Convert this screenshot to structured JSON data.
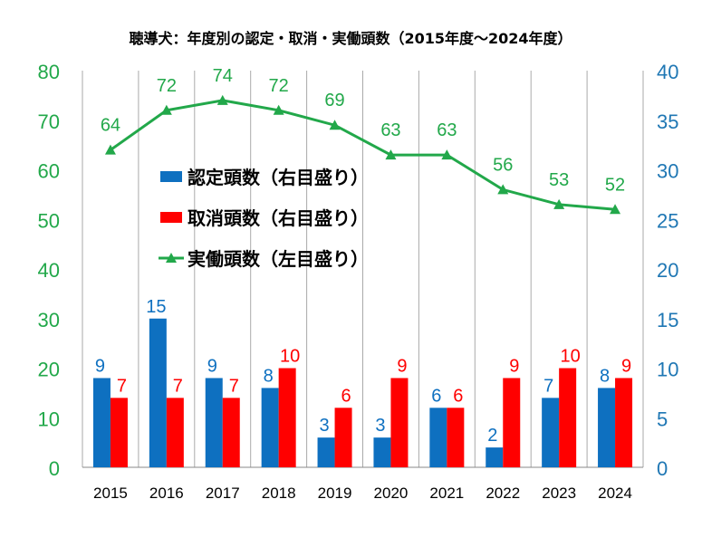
{
  "colors": {
    "green": "#22A84A",
    "blue": "#0E70C0",
    "red": "#FF0000",
    "grid": "#AAAAAA",
    "axis_left_text": "#22A84A",
    "axis_right_text": "#1F77B4"
  },
  "chart_data": {
    "type": "bar",
    "title": "聴導犬：年度別の認定・取消・実働頭数（2015年度～2024年度）",
    "categories": [
      "2015",
      "2016",
      "2017",
      "2018",
      "2019",
      "2020",
      "2021",
      "2022",
      "2023",
      "2024"
    ],
    "series": [
      {
        "name": "認定頭数（右目盛り）",
        "type": "bar",
        "axis": "right",
        "color": "#0E70C0",
        "values": [
          9,
          15,
          9,
          8,
          3,
          3,
          6,
          2,
          7,
          8
        ]
      },
      {
        "name": "取消頭数（右目盛り）",
        "type": "bar",
        "axis": "right",
        "color": "#FF0000",
        "values": [
          7,
          7,
          7,
          10,
          6,
          9,
          6,
          9,
          10,
          9
        ]
      },
      {
        "name": "実働頭数（左目盛り）",
        "type": "line",
        "axis": "left",
        "color": "#22A84A",
        "marker": "triangle",
        "values": [
          64,
          72,
          74,
          72,
          69,
          63,
          63,
          56,
          53,
          52
        ]
      }
    ],
    "y_left": {
      "range": [
        0,
        80
      ],
      "ticks": [
        "0",
        "10",
        "20",
        "30",
        "40",
        "50",
        "60",
        "70",
        "80"
      ]
    },
    "y_right": {
      "range": [
        0,
        40
      ],
      "ticks": [
        "0",
        "5",
        "10",
        "15",
        "20",
        "25",
        "30",
        "35",
        "40"
      ]
    },
    "grid": "vertical-category",
    "legend_position": "center-left"
  }
}
